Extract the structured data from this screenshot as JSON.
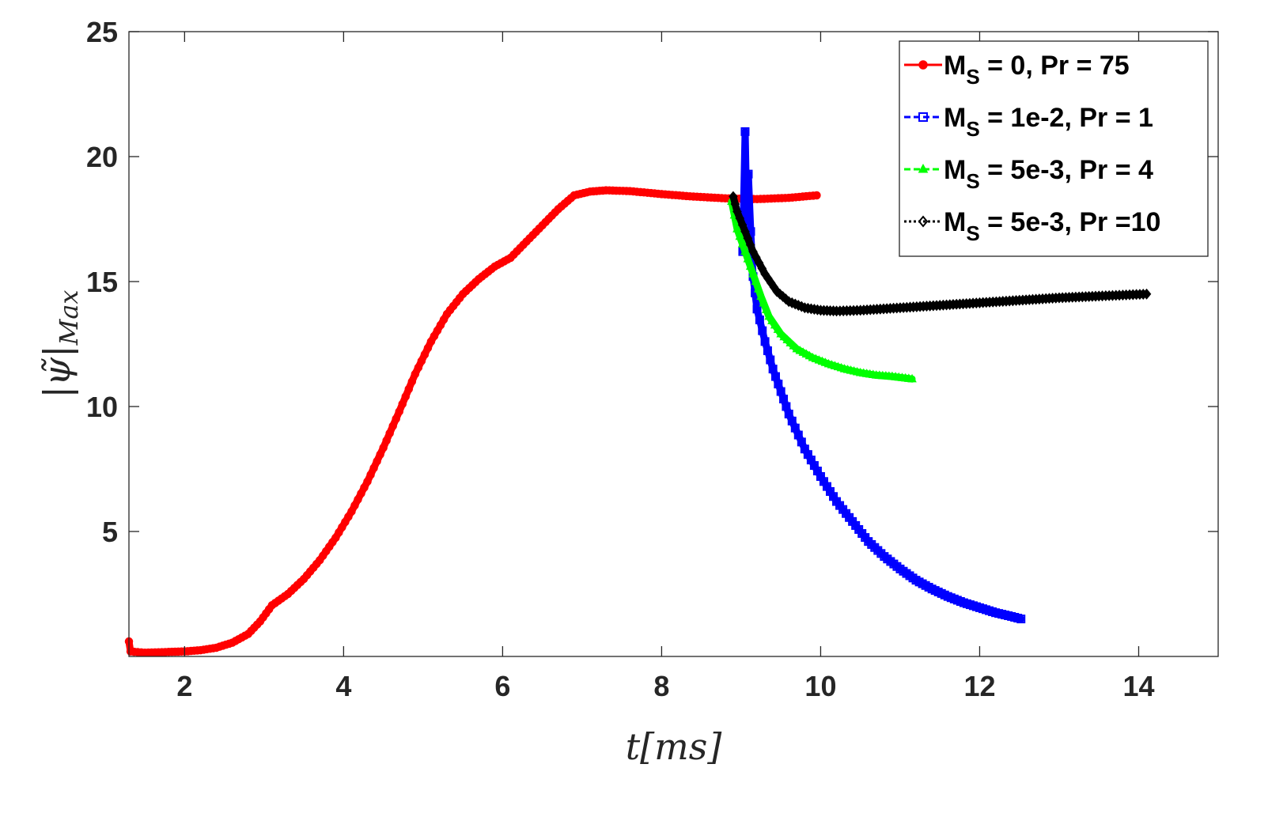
{
  "chart_data": {
    "type": "line",
    "title": "",
    "xlabel": "t[ms]",
    "ylabel": "|ψ̃|Max",
    "xlim": [
      1.3,
      15
    ],
    "ylim": [
      0,
      25
    ],
    "xticks": [
      2,
      4,
      6,
      8,
      10,
      12,
      14
    ],
    "yticks": [
      5,
      10,
      15,
      20,
      25
    ],
    "grid": false,
    "legend_position": "top-right",
    "series": [
      {
        "name": "MS = 0, Pr = 75",
        "legend": {
          "main": "M",
          "sub": "S",
          "rest": " = 0, Pr = 75"
        },
        "color": "#ff0000",
        "line_style": "solid",
        "marker": "circle",
        "points": [
          [
            1.3,
            0.6
          ],
          [
            1.32,
            0.2
          ],
          [
            1.5,
            0.15
          ],
          [
            1.8,
            0.18
          ],
          [
            2.0,
            0.2
          ],
          [
            2.2,
            0.25
          ],
          [
            2.4,
            0.35
          ],
          [
            2.6,
            0.55
          ],
          [
            2.8,
            0.9
          ],
          [
            2.95,
            1.4
          ],
          [
            3.1,
            2.05
          ],
          [
            3.3,
            2.5
          ],
          [
            3.5,
            3.1
          ],
          [
            3.7,
            3.85
          ],
          [
            3.9,
            4.75
          ],
          [
            4.1,
            5.8
          ],
          [
            4.3,
            7.0
          ],
          [
            4.5,
            8.35
          ],
          [
            4.7,
            9.8
          ],
          [
            4.9,
            11.3
          ],
          [
            5.1,
            12.6
          ],
          [
            5.3,
            13.7
          ],
          [
            5.5,
            14.5
          ],
          [
            5.7,
            15.1
          ],
          [
            5.9,
            15.6
          ],
          [
            6.1,
            15.95
          ],
          [
            6.3,
            16.6
          ],
          [
            6.5,
            17.25
          ],
          [
            6.7,
            17.9
          ],
          [
            6.9,
            18.45
          ],
          [
            7.1,
            18.6
          ],
          [
            7.3,
            18.65
          ],
          [
            7.6,
            18.62
          ],
          [
            8.0,
            18.5
          ],
          [
            8.4,
            18.4
          ],
          [
            8.8,
            18.33
          ],
          [
            9.2,
            18.3
          ],
          [
            9.6,
            18.35
          ],
          [
            9.95,
            18.45
          ]
        ]
      },
      {
        "name": "MS = 1e-2, Pr = 1",
        "legend": {
          "main": "M",
          "sub": "S",
          "rest": " = 1e-2, Pr = 1"
        },
        "color": "#0000ff",
        "line_style": "dashed",
        "marker": "square",
        "points": [
          [
            9.02,
            16.2
          ],
          [
            9.05,
            21.0
          ],
          [
            9.07,
            17.5
          ],
          [
            9.09,
            19.3
          ],
          [
            9.12,
            17.0
          ],
          [
            9.15,
            15.2
          ],
          [
            9.2,
            13.9
          ],
          [
            9.3,
            12.6
          ],
          [
            9.4,
            11.5
          ],
          [
            9.5,
            10.6
          ],
          [
            9.6,
            9.7
          ],
          [
            9.8,
            8.3
          ],
          [
            10.0,
            7.2
          ],
          [
            10.2,
            6.2
          ],
          [
            10.4,
            5.4
          ],
          [
            10.6,
            4.6
          ],
          [
            10.8,
            4.0
          ],
          [
            11.0,
            3.5
          ],
          [
            11.2,
            3.05
          ],
          [
            11.4,
            2.7
          ],
          [
            11.6,
            2.4
          ],
          [
            11.8,
            2.15
          ],
          [
            12.0,
            1.95
          ],
          [
            12.2,
            1.75
          ],
          [
            12.4,
            1.6
          ],
          [
            12.52,
            1.5
          ]
        ]
      },
      {
        "name": "MS = 5e-3, Pr = 4",
        "legend": {
          "main": "M",
          "sub": "S",
          "rest": " = 5e-3, Pr = 4"
        },
        "color": "#00ff00",
        "line_style": "dashed",
        "marker": "triangle",
        "points": [
          [
            8.88,
            18.2
          ],
          [
            8.95,
            17.1
          ],
          [
            9.05,
            16.2
          ],
          [
            9.15,
            15.3
          ],
          [
            9.25,
            14.4
          ],
          [
            9.35,
            13.6
          ],
          [
            9.5,
            12.9
          ],
          [
            9.7,
            12.3
          ],
          [
            9.9,
            11.95
          ],
          [
            10.1,
            11.7
          ],
          [
            10.3,
            11.5
          ],
          [
            10.5,
            11.35
          ],
          [
            10.7,
            11.25
          ],
          [
            10.9,
            11.2
          ],
          [
            11.15,
            11.1
          ]
        ]
      },
      {
        "name": "MS = 5e-3, Pr =10",
        "legend": {
          "main": "M",
          "sub": "S",
          "rest": " = 5e-3, Pr =10"
        },
        "color": "#000000",
        "line_style": "dotted",
        "marker": "diamond",
        "points": [
          [
            8.9,
            18.4
          ],
          [
            8.95,
            17.8
          ],
          [
            9.05,
            17.0
          ],
          [
            9.15,
            16.2
          ],
          [
            9.3,
            15.3
          ],
          [
            9.45,
            14.6
          ],
          [
            9.6,
            14.2
          ],
          [
            9.8,
            13.95
          ],
          [
            10.0,
            13.85
          ],
          [
            10.2,
            13.82
          ],
          [
            10.5,
            13.85
          ],
          [
            11.0,
            13.95
          ],
          [
            11.5,
            14.05
          ],
          [
            12.0,
            14.15
          ],
          [
            12.5,
            14.25
          ],
          [
            13.0,
            14.35
          ],
          [
            13.5,
            14.42
          ],
          [
            14.1,
            14.5
          ]
        ]
      }
    ]
  }
}
